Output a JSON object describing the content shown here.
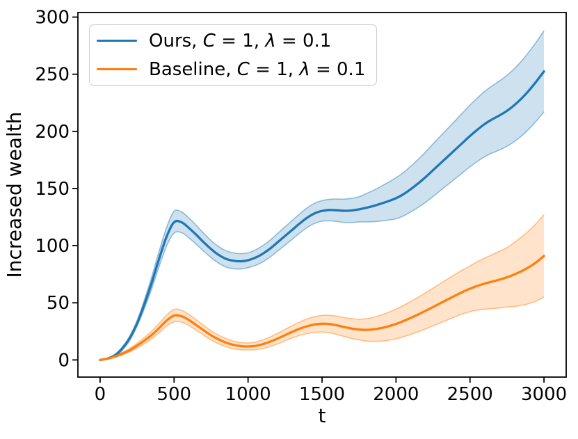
{
  "chart_data": {
    "type": "line",
    "title": "",
    "xlabel": "t",
    "ylabel": "Increased wealth",
    "xlim": [
      -150,
      3150
    ],
    "ylim": [
      -15,
      304
    ],
    "x_ticks": [
      0,
      500,
      1000,
      1500,
      2000,
      2500,
      3000
    ],
    "y_ticks": [
      0,
      50,
      100,
      150,
      200,
      250,
      300
    ],
    "grid": false,
    "legend_position": "upper left",
    "x": [
      0,
      50,
      100,
      150,
      200,
      250,
      300,
      350,
      400,
      450,
      500,
      550,
      600,
      650,
      700,
      750,
      800,
      850,
      900,
      950,
      1000,
      1050,
      1100,
      1150,
      1200,
      1250,
      1300,
      1350,
      1400,
      1450,
      1500,
      1550,
      1600,
      1650,
      1700,
      1750,
      1800,
      1850,
      1900,
      1950,
      2000,
      2050,
      2100,
      2150,
      2200,
      2250,
      2300,
      2350,
      2400,
      2450,
      2500,
      2550,
      2600,
      2650,
      2700,
      2750,
      2800,
      2850,
      2900,
      2950,
      3000
    ],
    "series": [
      {
        "name": "Ours, C = 1, λ = 0.1",
        "color": "#1f77b4",
        "mean": [
          0,
          1.2,
          4,
          10,
          19,
          32,
          49,
          68,
          89,
          108,
          120.5,
          120.5,
          115.5,
          109.5,
          103,
          97,
          92,
          88.5,
          86.8,
          86.3,
          87.2,
          89.5,
          93,
          97.5,
          103,
          108.5,
          114,
          119.5,
          124.5,
          128.3,
          130.4,
          131.2,
          131,
          130.5,
          130.8,
          131.8,
          133.2,
          134.8,
          136.8,
          139,
          141.5,
          145,
          149.5,
          154.5,
          160,
          166,
          172,
          178,
          184,
          190,
          196,
          201.5,
          206.5,
          210.5,
          214,
          218,
          223,
          229,
          236,
          244,
          252.5
        ],
        "band_half_width": [
          0,
          0.5,
          1,
          1.5,
          2,
          2.5,
          3.9,
          5.3,
          6.7,
          8.1,
          9.5,
          9.1,
          8.7,
          8.3,
          7.9,
          7.5,
          7.3,
          7.1,
          6.9,
          6.7,
          6.5,
          6.8,
          7.1,
          7.4,
          7.7,
          8,
          8.2,
          8.4,
          8.6,
          8.8,
          9,
          9.4,
          9.8,
          10.2,
          10.6,
          11,
          12.4,
          13.8,
          15.2,
          16.6,
          18,
          19,
          20,
          21,
          22,
          23,
          23.8,
          24.6,
          25.4,
          26.2,
          27,
          27.8,
          28.6,
          29.4,
          30.2,
          31,
          31.9,
          32.8,
          33.7,
          34.6,
          35.5
        ]
      },
      {
        "name": "Baseline, C = 1, λ = 0.1",
        "color": "#ff7f0e",
        "mean": [
          0,
          1,
          3,
          5.5,
          8.5,
          12.5,
          17,
          22,
          28,
          34.5,
          38.8,
          38.3,
          35,
          30.5,
          26,
          21.5,
          18,
          15.2,
          13.2,
          12.1,
          11.8,
          12.3,
          13.8,
          16,
          18.7,
          21.7,
          24.7,
          27.4,
          29.5,
          31,
          31.7,
          31.4,
          30.3,
          28.8,
          27.5,
          26.6,
          26.3,
          26.8,
          27.9,
          29.5,
          31.5,
          34,
          36.8,
          39.8,
          43,
          46.3,
          49.7,
          53,
          56.3,
          59.5,
          62.3,
          64.8,
          66.8,
          68.5,
          70.3,
          72.3,
          74.8,
          77.8,
          81.3,
          85.7,
          91
        ],
        "band_half_width": [
          0,
          0.4,
          0.8,
          1.2,
          1.6,
          2,
          2.7,
          3.4,
          4.1,
          4.8,
          5.5,
          5.2,
          4.9,
          4.6,
          4.3,
          4,
          3.8,
          3.6,
          3.4,
          3.2,
          3,
          3.4,
          3.8,
          4.2,
          4.6,
          5,
          5.5,
          5.9,
          6.4,
          6.8,
          7.3,
          7.6,
          8,
          8.3,
          8.7,
          9,
          9.8,
          10.6,
          11.4,
          12.2,
          13,
          13.7,
          14.4,
          15.1,
          15.8,
          16.5,
          17.2,
          17.9,
          18.6,
          19.3,
          20,
          21.2,
          22.4,
          23.6,
          24.8,
          26,
          28,
          30,
          32,
          34,
          36
        ]
      }
    ]
  },
  "legend": {
    "items": [
      {
        "color": "#1f77b4",
        "segments": [
          {
            "t": "Ours, "
          },
          {
            "t": "C",
            "i": true
          },
          {
            "t": " = 1, "
          },
          {
            "t": "λ",
            "i": true
          },
          {
            "t": " = 0.1"
          }
        ]
      },
      {
        "color": "#ff7f0e",
        "segments": [
          {
            "t": "Baseline, "
          },
          {
            "t": "C",
            "i": true
          },
          {
            "t": " = 1, "
          },
          {
            "t": "λ",
            "i": true
          },
          {
            "t": " = 0.1"
          }
        ]
      }
    ]
  }
}
